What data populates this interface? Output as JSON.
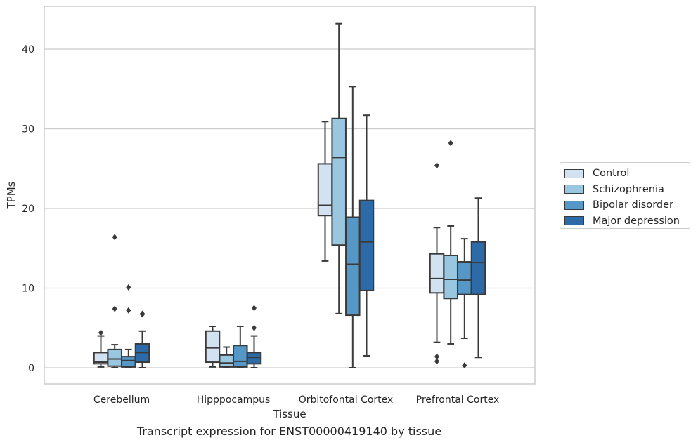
{
  "chart_data": {
    "type": "box",
    "title": "Transcript expression for ENST00000419140 by tissue",
    "xlabel": "Tissue",
    "ylabel": "TPMs",
    "ylim": [
      -2,
      45.5
    ],
    "yticks": [
      0,
      10,
      20,
      30,
      40
    ],
    "grid": "horizontal",
    "legend_position": "right",
    "categories": [
      "Cerebellum",
      "Hipppocampus",
      "Orbitofontal Cortex",
      "Prefrontal Cortex"
    ],
    "series": [
      {
        "name": "Control",
        "color": "#d2e2f1",
        "boxes": [
          {
            "whislo": 0.1,
            "q1": 0.5,
            "med": 0.7,
            "q3": 1.9,
            "whishi": 4.0,
            "fliers": [
              4.4
            ]
          },
          {
            "whislo": 0.1,
            "q1": 0.7,
            "med": 2.5,
            "q3": 4.6,
            "whishi": 5.2,
            "fliers": []
          },
          {
            "whislo": 13.4,
            "q1": 19.1,
            "med": 20.4,
            "q3": 25.6,
            "whishi": 30.9,
            "fliers": []
          },
          {
            "whislo": 3.2,
            "q1": 9.4,
            "med": 11.2,
            "q3": 14.3,
            "whishi": 17.6,
            "fliers": [
              25.4,
              1.4,
              0.8
            ]
          }
        ]
      },
      {
        "name": "Schizophrenia",
        "color": "#9ac7e0",
        "boxes": [
          {
            "whislo": 0.0,
            "q1": 0.2,
            "med": 1.1,
            "q3": 2.3,
            "whishi": 2.9,
            "fliers": [
              16.4,
              7.4
            ]
          },
          {
            "whislo": 0.0,
            "q1": 0.1,
            "med": 0.6,
            "q3": 1.6,
            "whishi": 2.6,
            "fliers": []
          },
          {
            "whislo": 6.8,
            "q1": 15.4,
            "med": 26.4,
            "q3": 31.3,
            "whishi": 43.2,
            "fliers": []
          },
          {
            "whislo": 3.0,
            "q1": 8.7,
            "med": 11.1,
            "q3": 14.1,
            "whishi": 17.8,
            "fliers": [
              28.2
            ]
          }
        ]
      },
      {
        "name": "Bipolar disorder",
        "color": "#5598c8",
        "boxes": [
          {
            "whislo": 0.0,
            "q1": 0.1,
            "med": 0.9,
            "q3": 1.4,
            "whishi": 2.3,
            "fliers": [
              10.1,
              7.2
            ]
          },
          {
            "whislo": 0.0,
            "q1": 0.1,
            "med": 0.8,
            "q3": 2.8,
            "whishi": 5.2,
            "fliers": []
          },
          {
            "whislo": 0.0,
            "q1": 6.6,
            "med": 13.0,
            "q3": 18.9,
            "whishi": 35.3,
            "fliers": []
          },
          {
            "whislo": 3.7,
            "q1": 9.2,
            "med": 11.0,
            "q3": 13.3,
            "whishi": 16.2,
            "fliers": [
              0.3
            ]
          }
        ]
      },
      {
        "name": "Major depression",
        "color": "#2d6aa8",
        "boxes": [
          {
            "whislo": 0.0,
            "q1": 0.7,
            "med": 1.9,
            "q3": 3.0,
            "whishi": 4.6,
            "fliers": [
              6.8,
              6.7
            ]
          },
          {
            "whislo": 0.0,
            "q1": 0.5,
            "med": 1.3,
            "q3": 1.9,
            "whishi": 4.0,
            "fliers": [
              7.5,
              5.0
            ]
          },
          {
            "whislo": 1.5,
            "q1": 9.7,
            "med": 15.8,
            "q3": 21.0,
            "whishi": 31.7,
            "fliers": []
          },
          {
            "whislo": 1.3,
            "q1": 9.2,
            "med": 13.2,
            "q3": 15.8,
            "whishi": 21.3,
            "fliers": []
          }
        ]
      }
    ]
  }
}
